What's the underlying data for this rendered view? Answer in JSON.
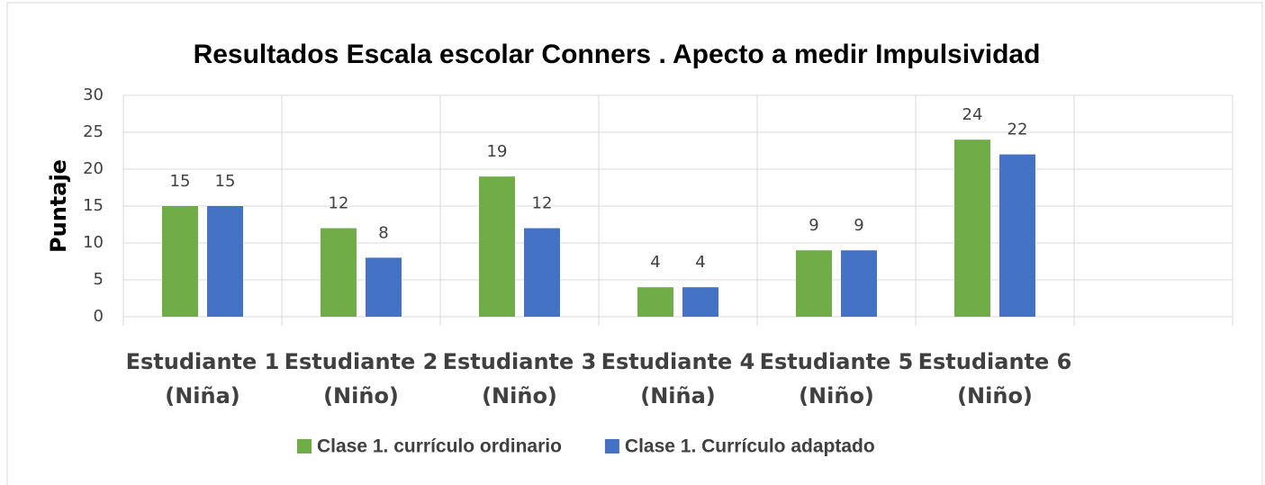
{
  "chart_data": {
    "type": "bar",
    "title": "Resultados  Escala escolar Conners . Apecto a medir Impulsividad",
    "y_label": "Puntaje",
    "categories": [
      "Estudiante 1 (Niña)",
      "Estudiante 2 (Niño)",
      "Estudiante 3 (Niño)",
      "Estudiante 4 (Niña)",
      "Estudiante 5 (Niño)",
      "Estudiante 6 (Niño)",
      null
    ],
    "series": [
      {
        "name": "Clase 1. currículo ordinario",
        "color": "#70ad47",
        "values": [
          15,
          12,
          19,
          4,
          9,
          24,
          null
        ]
      },
      {
        "name": "Clase 1. Currículo adaptado",
        "color": "#4472c4",
        "values": [
          15,
          8,
          12,
          4,
          9,
          22,
          null
        ]
      }
    ],
    "ylim": [
      0,
      30
    ],
    "yticks": [
      0,
      5,
      10,
      15,
      20,
      25,
      30
    ],
    "grid": true,
    "legend": "bottom"
  }
}
